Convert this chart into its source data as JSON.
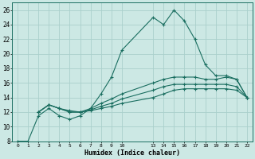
{
  "xlabel": "Humidex (Indice chaleur)",
  "background_color": "#cce8e4",
  "grid_color": "#aad0cc",
  "line_color": "#1a6e60",
  "xlim": [
    -0.5,
    22.5
  ],
  "ylim": [
    8,
    27
  ],
  "xtick_positions": [
    0,
    1,
    2,
    3,
    4,
    5,
    6,
    7,
    8,
    9,
    10,
    13,
    14,
    15,
    16,
    17,
    18,
    19,
    20,
    21,
    22
  ],
  "xtick_labels": [
    "0",
    "1",
    "2",
    "3",
    "4",
    "5",
    "6",
    "7",
    "8",
    "9",
    "10",
    "13",
    "14",
    "15",
    "16",
    "17",
    "18",
    "19",
    "20",
    "21",
    "22"
  ],
  "ytick_positions": [
    8,
    10,
    12,
    14,
    16,
    18,
    20,
    22,
    24,
    26
  ],
  "ytick_labels": [
    "8",
    "10",
    "12",
    "14",
    "16",
    "18",
    "20",
    "22",
    "24",
    "26"
  ],
  "series1_x": [
    0,
    1,
    2,
    3,
    4,
    5,
    6,
    7,
    8,
    9,
    10,
    13,
    14,
    15,
    16,
    17,
    18,
    19,
    20,
    21,
    22
  ],
  "series1_y": [
    8.0,
    8.0,
    11.5,
    12.5,
    11.5,
    11.0,
    11.5,
    12.5,
    14.5,
    16.8,
    20.5,
    25.0,
    24.0,
    26.0,
    24.5,
    22.0,
    18.5,
    17.0,
    17.0,
    16.5,
    14.0
  ],
  "series2_x": [
    2,
    3,
    4,
    5,
    6,
    7,
    8,
    9,
    10,
    13,
    14,
    15,
    16,
    17,
    18,
    19,
    20,
    21,
    22
  ],
  "series2_y": [
    12.0,
    13.0,
    12.5,
    12.0,
    12.0,
    12.5,
    13.2,
    13.8,
    14.5,
    16.0,
    16.5,
    16.8,
    16.8,
    16.8,
    16.5,
    16.5,
    16.8,
    16.5,
    14.0
  ],
  "series3_x": [
    2,
    3,
    4,
    5,
    6,
    7,
    8,
    9,
    10,
    13,
    14,
    15,
    16,
    17,
    18,
    19,
    20,
    21,
    22
  ],
  "series3_y": [
    12.0,
    13.0,
    12.5,
    12.0,
    12.0,
    12.3,
    12.8,
    13.2,
    13.8,
    15.0,
    15.5,
    15.8,
    15.8,
    15.8,
    15.8,
    15.8,
    15.8,
    15.5,
    14.0
  ],
  "series4_x": [
    2,
    3,
    4,
    5,
    6,
    7,
    8,
    9,
    10,
    13,
    14,
    15,
    16,
    17,
    18,
    19,
    20,
    21,
    22
  ],
  "series4_y": [
    12.0,
    13.0,
    12.5,
    12.2,
    12.0,
    12.2,
    12.5,
    12.8,
    13.2,
    14.0,
    14.5,
    15.0,
    15.2,
    15.2,
    15.2,
    15.2,
    15.2,
    15.0,
    14.0
  ]
}
